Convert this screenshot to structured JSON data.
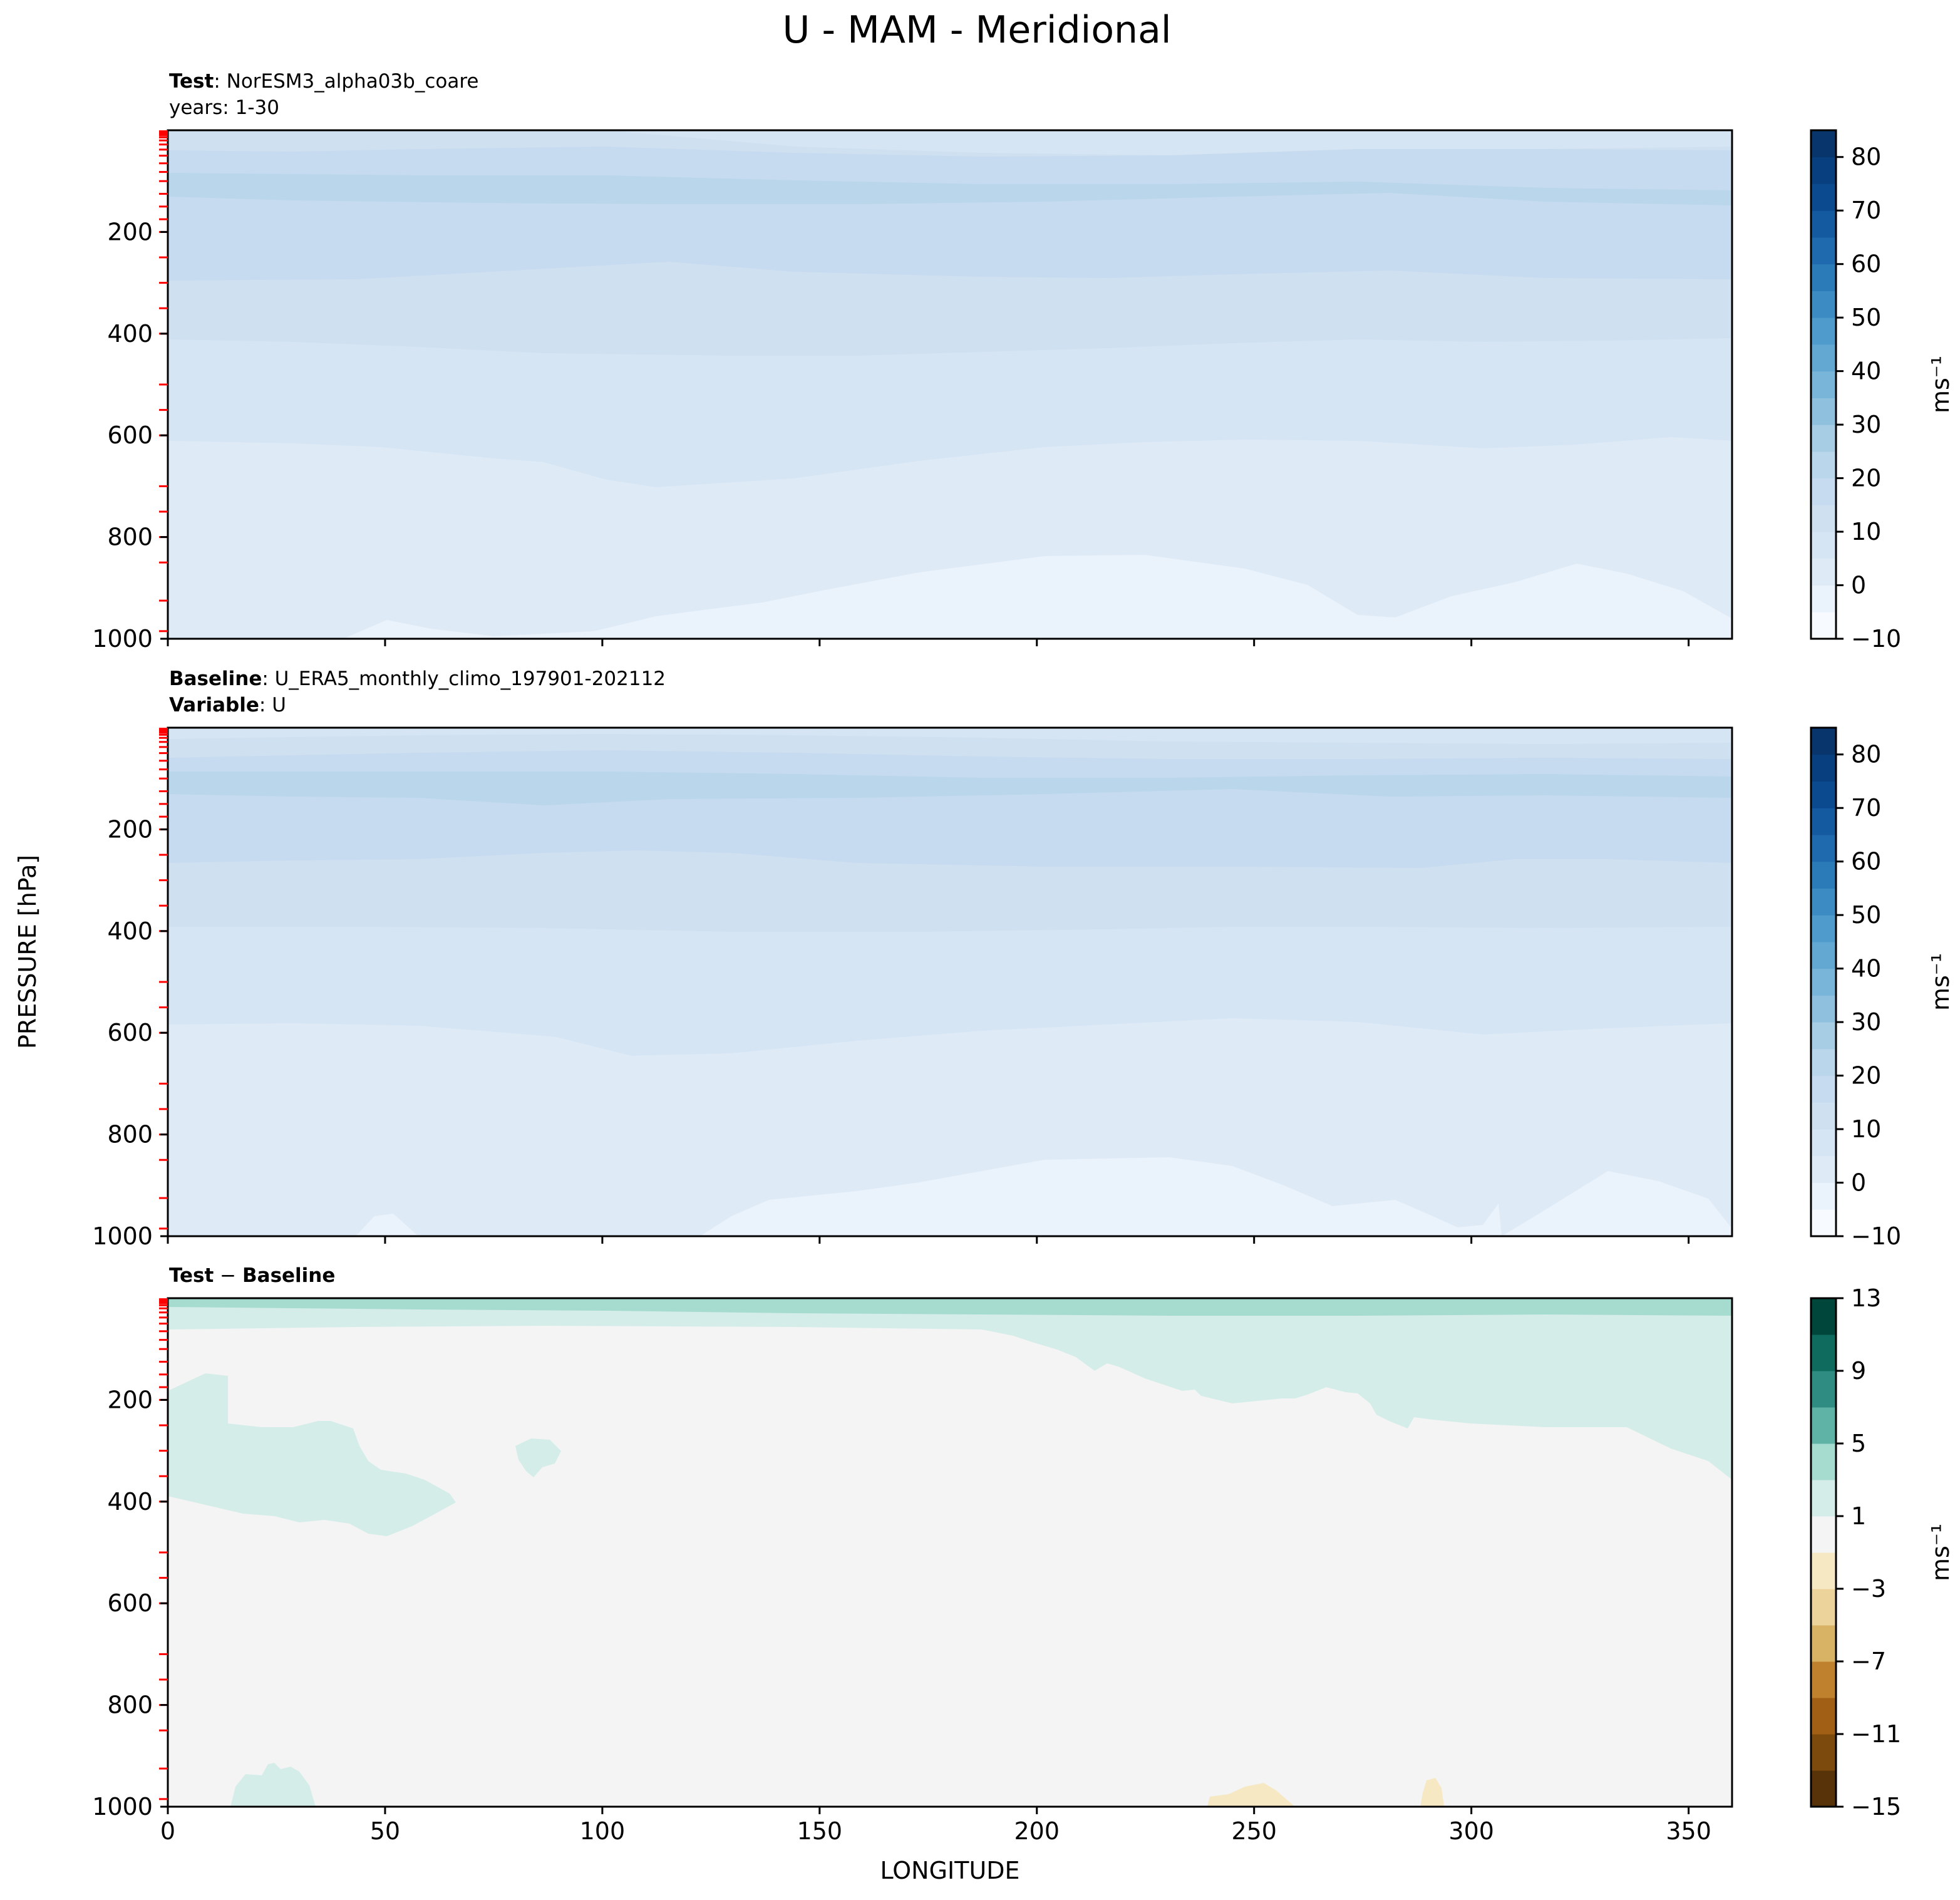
{
  "figure": {
    "title": "U - MAM - Meridional",
    "ylabel": "PRESSURE [hPa]",
    "xlabel": "LONGITUDE"
  },
  "chart_data": [
    {
      "type": "contourf",
      "id": "test",
      "header": {
        "line1_bold": "Test",
        "line1_text": ": NorESM3_alpha03b_coare",
        "line2_bold": "",
        "line2_text": "years: 1-30"
      },
      "xlim": [
        0,
        360
      ],
      "ylim": [
        1000,
        0
      ],
      "yticks": [
        200,
        400,
        600,
        800,
        1000
      ],
      "xticks": [
        0,
        50,
        100,
        150,
        200,
        250,
        300,
        350
      ],
      "show_xticklabels": false,
      "colorbar": {
        "label": "ms⁻¹",
        "levels": [
          -10,
          -5,
          0,
          5,
          10,
          15,
          20,
          25,
          30,
          35,
          40,
          45,
          50,
          55,
          60,
          65,
          70,
          75,
          80,
          85
        ],
        "ticks": [
          -10,
          0,
          10,
          20,
          30,
          40,
          50,
          60,
          70,
          80
        ],
        "cmap": "Blues"
      },
      "bands_ms": [
        {
          "range": "5-10",
          "color": "#deebf7"
        },
        {
          "range": "10-15",
          "color": "#d6e5f3"
        },
        {
          "range": "15-20",
          "color": "#cfe0f1"
        },
        {
          "range": "20-25",
          "color": "#c6dbef"
        },
        {
          "range": "0-5",
          "color": "#eaf2fb"
        }
      ]
    },
    {
      "type": "contourf",
      "id": "baseline",
      "header": {
        "line1_bold": "Baseline",
        "line1_text": ": U_ERA5_monthly_climo_197901-202112",
        "line2_bold": "Variable",
        "line2_text": ": U"
      },
      "xlim": [
        0,
        360
      ],
      "ylim": [
        1000,
        0
      ],
      "yticks": [
        200,
        400,
        600,
        800,
        1000
      ],
      "xticks": [
        0,
        50,
        100,
        150,
        200,
        250,
        300,
        350
      ],
      "show_xticklabels": false,
      "colorbar": {
        "label": "ms⁻¹",
        "levels": [
          -10,
          -5,
          0,
          5,
          10,
          15,
          20,
          25,
          30,
          35,
          40,
          45,
          50,
          55,
          60,
          65,
          70,
          75,
          80,
          85
        ],
        "ticks": [
          -10,
          0,
          10,
          20,
          30,
          40,
          50,
          60,
          70,
          80
        ],
        "cmap": "Blues"
      }
    },
    {
      "type": "contourf",
      "id": "diff",
      "header": {
        "line1_bold": "Test",
        "line1_text": " − ",
        "line1_bold2": "Baseline",
        "line2_bold": "",
        "line2_text": ""
      },
      "xlim": [
        0,
        360
      ],
      "ylim": [
        1000,
        0
      ],
      "yticks": [
        200,
        400,
        600,
        800,
        1000
      ],
      "xticks": [
        0,
        50,
        100,
        150,
        200,
        250,
        300,
        350
      ],
      "show_xticklabels": true,
      "colorbar": {
        "label": "ms⁻¹",
        "levels": [
          -15,
          -13,
          -11,
          -9,
          -7,
          -5,
          -3,
          -1,
          1,
          3,
          5,
          7,
          9,
          11,
          13
        ],
        "ticks": [
          -15,
          -11,
          -7,
          -3,
          1,
          5,
          9,
          13
        ],
        "cmap": "BrBG"
      }
    }
  ],
  "colors": {
    "blues": [
      "#f7fbff",
      "#eaf2fb",
      "#deebf7",
      "#d6e5f3",
      "#cfe0f1",
      "#c6dbef",
      "#b9d6ea",
      "#a6cde3",
      "#8fc1de",
      "#78b5d9",
      "#63a8d3",
      "#4f9bcb",
      "#3d8bc3",
      "#2c7bb9",
      "#1f6aae",
      "#145aa0",
      "#0b4a8f",
      "#08407f",
      "#08356b"
    ],
    "brbg": [
      "#583208",
      "#7b4a0c",
      "#a05f15",
      "#bf812d",
      "#d8b365",
      "#ecd29b",
      "#f6e8c3",
      "#f3f4f3",
      "#d4ede9",
      "#a6dbd0",
      "#5fb2a6",
      "#2f8c82",
      "#0e6b5e",
      "#00463a"
    ],
    "ref_ticks": "#ff0000",
    "axis": "#000000"
  }
}
